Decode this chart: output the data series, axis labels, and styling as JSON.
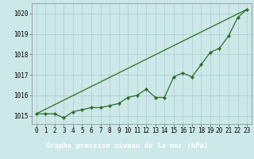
{
  "title": "Graphe pression niveau de la mer (hPa)",
  "xlabel_hours": [
    0,
    1,
    2,
    3,
    4,
    5,
    6,
    7,
    8,
    9,
    10,
    11,
    12,
    13,
    14,
    15,
    16,
    17,
    18,
    19,
    20,
    21,
    22,
    23
  ],
  "line1_x": [
    0,
    1,
    2,
    3,
    4,
    5,
    6,
    7,
    8,
    9,
    10,
    11,
    12,
    13,
    14,
    15,
    16,
    17,
    18,
    19,
    20,
    21,
    22,
    23
  ],
  "line1_y": [
    1015.1,
    1015.1,
    1015.1,
    1014.9,
    1015.2,
    1015.3,
    1015.4,
    1015.4,
    1015.5,
    1015.6,
    1015.9,
    1016.0,
    1016.3,
    1015.9,
    1015.9,
    1016.9,
    1017.1,
    1016.9,
    1017.5,
    1018.1,
    1018.3,
    1018.9,
    1019.8,
    1020.2
  ],
  "line2_x": [
    0,
    23
  ],
  "line2_y": [
    1015.1,
    1020.2
  ],
  "ylim": [
    1014.6,
    1020.5
  ],
  "yticks": [
    1015,
    1016,
    1017,
    1018,
    1019,
    1020
  ],
  "xlim": [
    -0.5,
    23.5
  ],
  "line_color": "#2d6b2d",
  "bg_color": "#cce8e8",
  "grid_color": "#aacccc",
  "title_bg": "#2d6b2d",
  "title_color": "#ffffff",
  "title_fontsize": 6.5,
  "tick_fontsize": 5.5,
  "marker_size": 2.2,
  "line_width": 0.9
}
